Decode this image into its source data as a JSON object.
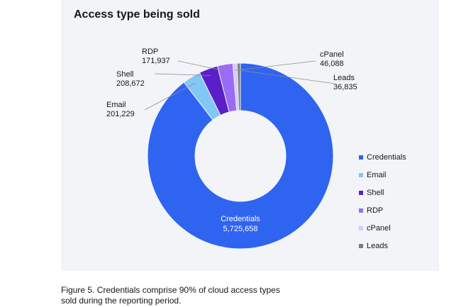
{
  "chart_data": {
    "type": "pie",
    "title": "Access type being sold",
    "hole": true,
    "legend_position": "right",
    "categories": [
      "Credentials",
      "Email",
      "Shell",
      "RDP",
      "cPanel",
      "Leads"
    ],
    "values": [
      5725658,
      201229,
      208672,
      171937,
      46088,
      36835
    ],
    "value_labels": [
      "5,725,658",
      "201,229",
      "208,672",
      "171,937",
      "46,088",
      "36,835"
    ],
    "colors": [
      "#2f64f0",
      "#82c7f5",
      "#5a1fc8",
      "#9a6cf6",
      "#d6c8ff",
      "#7d7d7d"
    ]
  },
  "caption": "Figure 5. Credentials comprise 90% of cloud access types sold during the reporting period."
}
